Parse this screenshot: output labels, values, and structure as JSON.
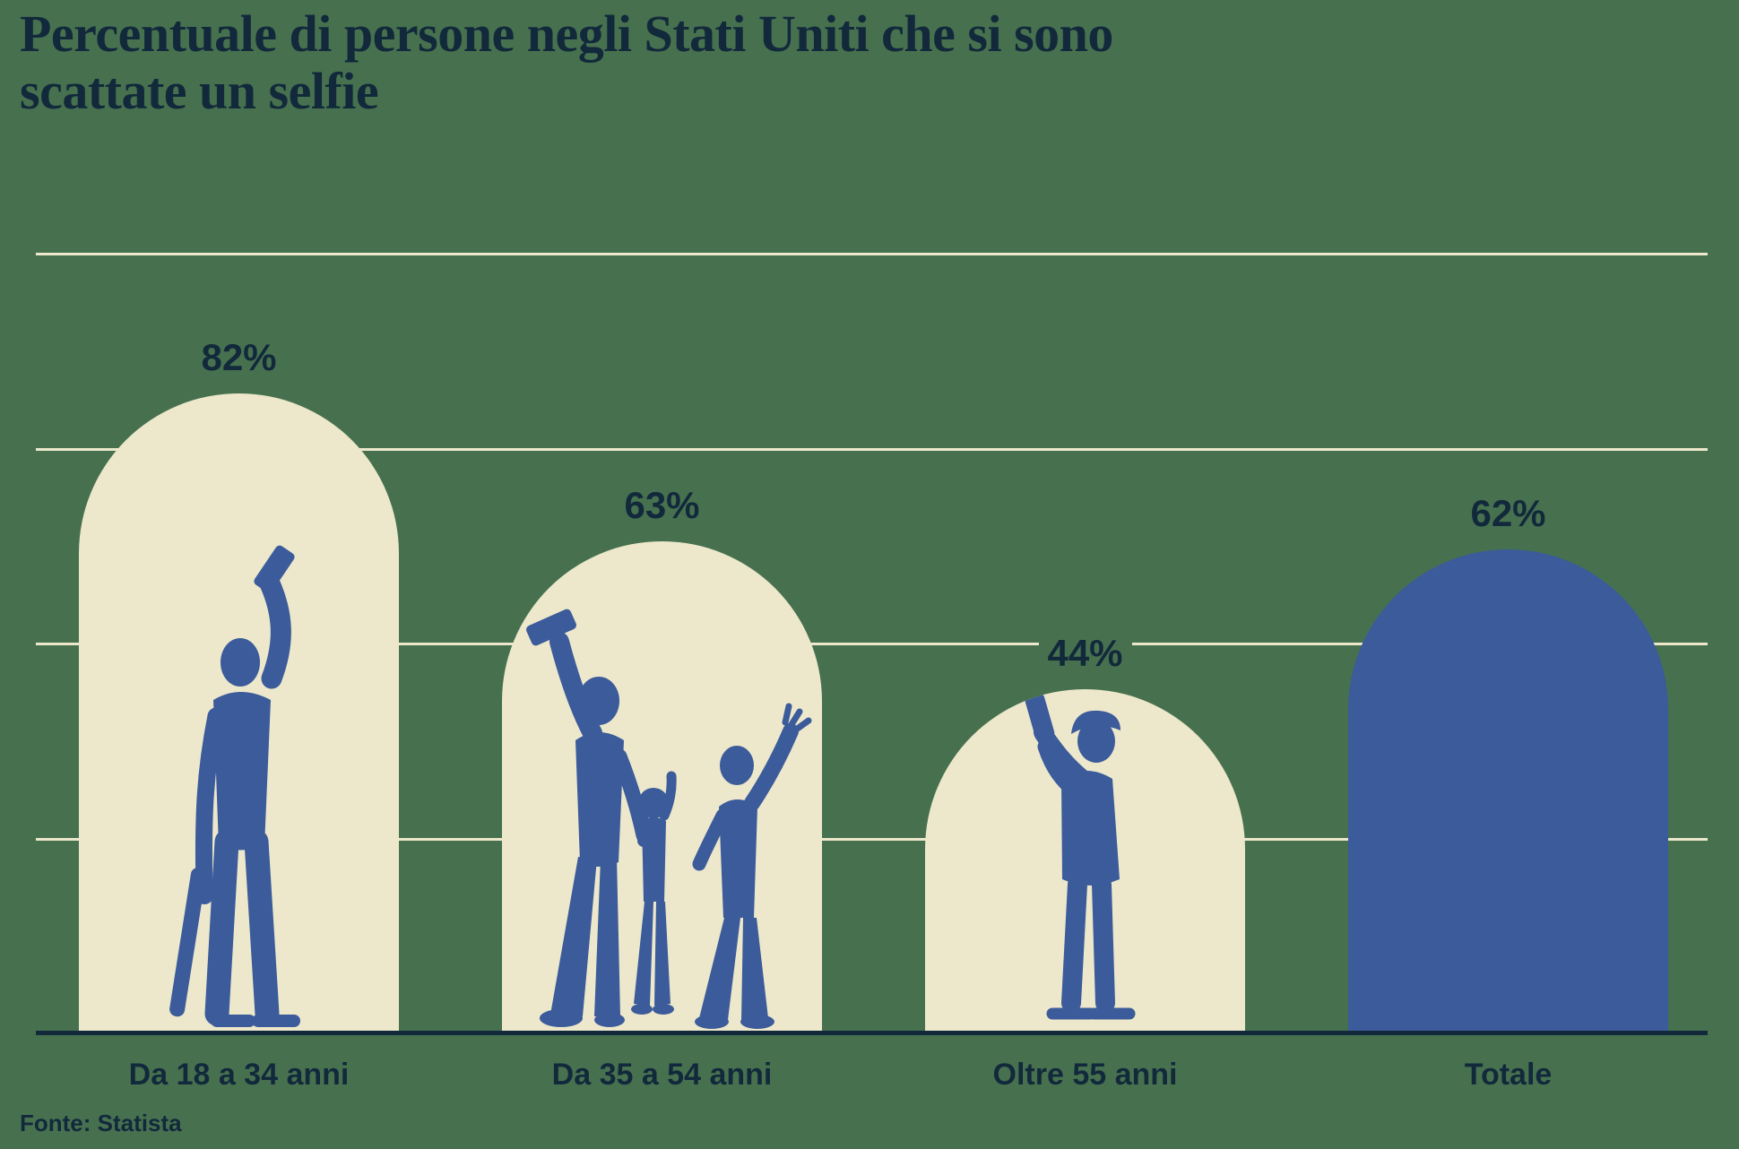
{
  "title": {
    "lines": [
      "Percentuale di persone negli Stati Uniti che si sono",
      "scattate un selfie"
    ]
  },
  "source": "Fonte: Statista",
  "colors": {
    "background": "#47714E",
    "bar_cream": "#EDE8CC",
    "bar_blue": "#3B5B9A",
    "silhouette_blue": "#3B5B9A",
    "text_navy": "#12293C",
    "gridline": "#EDE8CC",
    "axis": "#12293C"
  },
  "chart_data": {
    "type": "bar",
    "title": "Percentuale di persone negli Stati Uniti che si sono scattate un selfie",
    "xlabel": "",
    "ylabel": "",
    "ylim": [
      0,
      100
    ],
    "gridlines_percent": [
      25,
      50,
      75,
      100
    ],
    "grid": "on",
    "legend": "none",
    "categories": [
      "Da 18 a 34 anni",
      "Da 35 a 54 anni",
      "Oltre 55 anni",
      "Totale"
    ],
    "values": [
      82,
      63,
      44,
      62
    ],
    "value_labels": [
      "82%",
      "63%",
      "44%",
      "62%"
    ],
    "source": "Fonte: Statista",
    "bars": [
      {
        "category": "Da 18 a 34 anni",
        "value": 82,
        "label": "82%",
        "fill": "cream",
        "silhouette": "young-man-selfie-skateboard-icon"
      },
      {
        "category": "Da 35 a 54 anni",
        "value": 63,
        "label": "63%",
        "fill": "cream",
        "silhouette": "family-selfie-icon"
      },
      {
        "category": "Oltre 55 anni",
        "value": 44,
        "label": "44%",
        "fill": "cream",
        "silhouette": "senior-man-selfie-icon"
      },
      {
        "category": "Totale",
        "value": 62,
        "label": "62%",
        "fill": "blue",
        "silhouette": null
      }
    ]
  }
}
